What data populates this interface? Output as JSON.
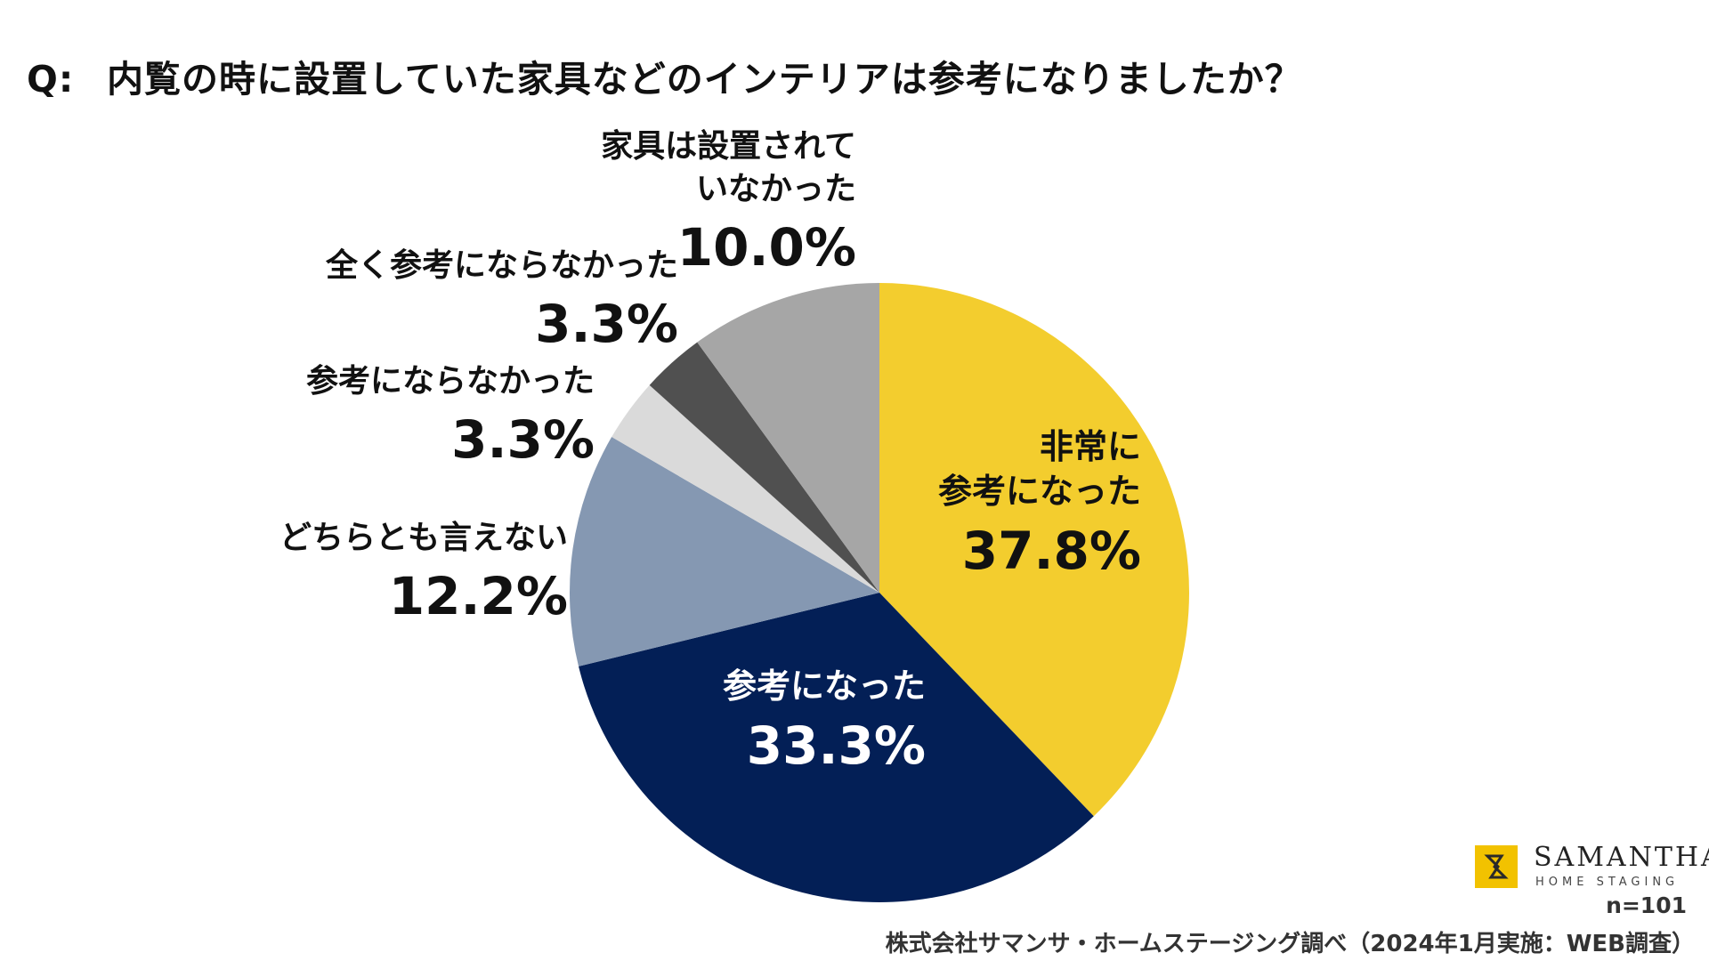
{
  "question": {
    "prefix": "Q:",
    "text": "内覧の時に設置していた家具などのインテリアは参考になりましたか？"
  },
  "chart_data": {
    "type": "pie",
    "start": "12 o'clock, clockwise",
    "slices": [
      {
        "label_lines": [
          "非常に",
          "参考になった"
        ],
        "value": 37.8,
        "value_text": "37.8%",
        "color": "#f3cd2e",
        "text_color": "#111111"
      },
      {
        "label_lines": [
          "参考になった"
        ],
        "value": 33.3,
        "value_text": "33.3%",
        "color": "#031f56",
        "text_color": "#ffffff"
      },
      {
        "label_lines": [
          "どちらとも言えない"
        ],
        "value": 12.2,
        "value_text": "12.2%",
        "color": "#8598b2",
        "text_color": "#111111"
      },
      {
        "label_lines": [
          "参考にならなかった"
        ],
        "value": 3.3,
        "value_text": "3.3%",
        "color": "#dadada",
        "text_color": "#111111"
      },
      {
        "label_lines": [
          "全く参考にならなかった"
        ],
        "value": 3.3,
        "value_text": "3.3%",
        "color": "#505050",
        "text_color": "#111111"
      },
      {
        "label_lines": [
          "家具は設置されて",
          "いなかった"
        ],
        "value": 10.0,
        "value_text": "10.0%",
        "color": "#a6a6a6",
        "text_color": "#111111"
      }
    ]
  },
  "logo": {
    "name": "SAMANTHA",
    "sub": "HOME STAGING",
    "mark_color": "#f2c200"
  },
  "sample_size": "n=101",
  "source": "株式会社サマンサ・ホームステージング調べ（2024年1月実施：WEB調査）"
}
